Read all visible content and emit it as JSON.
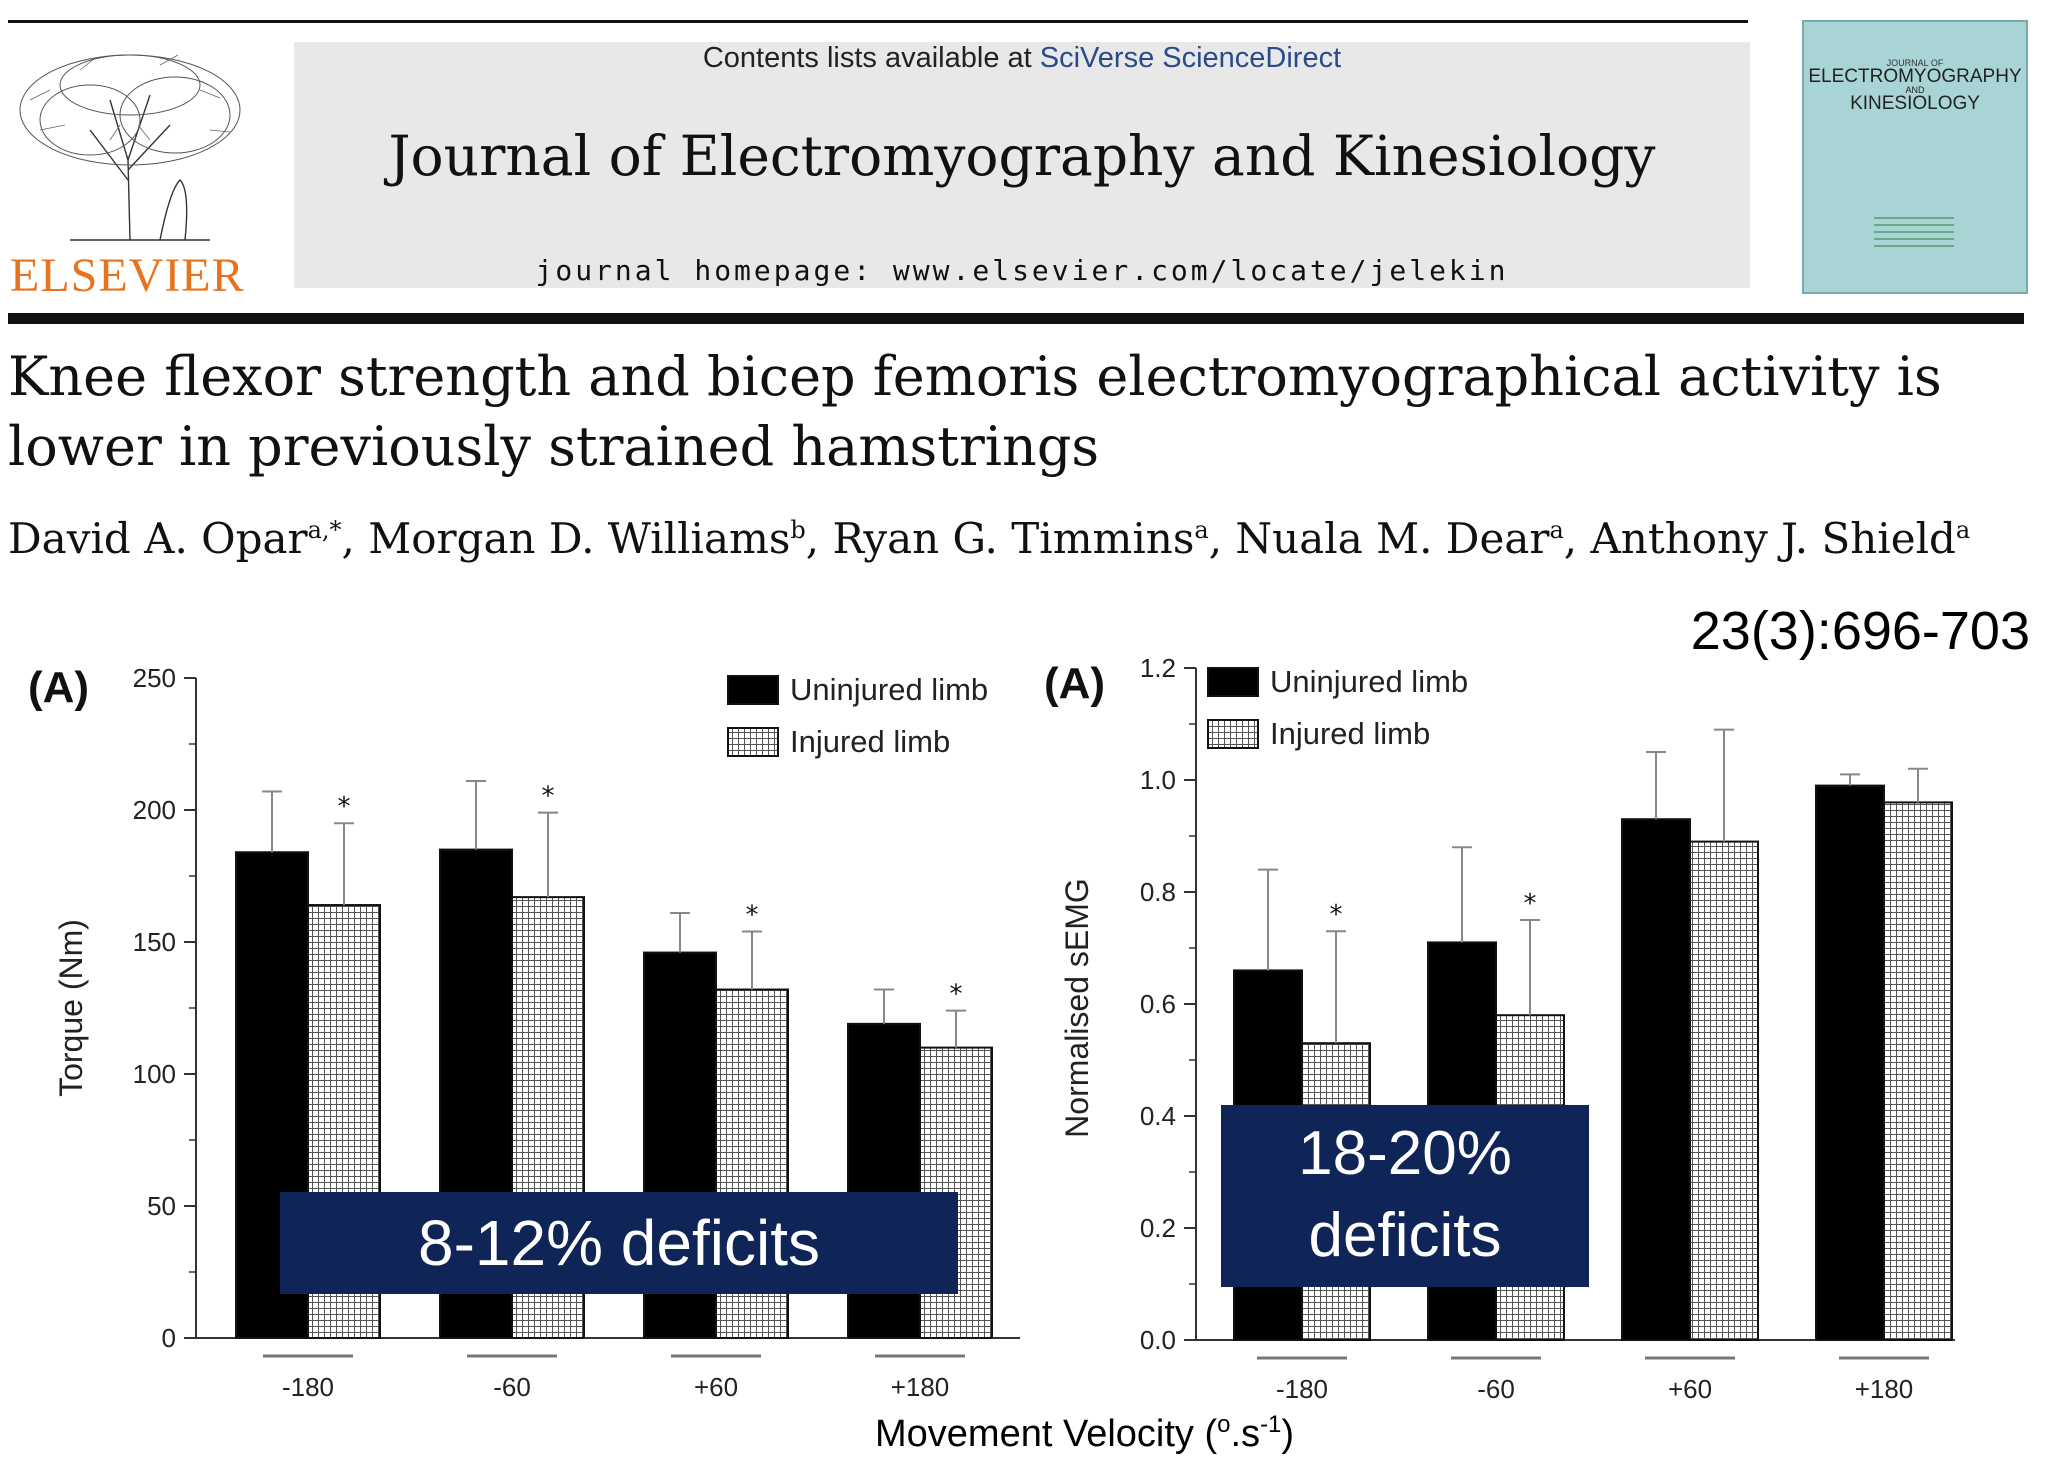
{
  "header": {
    "contents_prefix": "Contents lists available at ",
    "contents_link": "SciVerse ScienceDirect",
    "journal_title": "Journal of Electromyography and Kinesiology",
    "journal_homepage": "journal homepage: www.elsevier.com/locate/jelekin",
    "publisher": "ELSEVIER",
    "cover_small": "JOURNAL OF",
    "cover_title_1": "ELECTROMYOGRAPHY",
    "cover_title_and": "AND",
    "cover_title_2": "KINESIOLOGY"
  },
  "article": {
    "title": "Knee flexor strength and bicep femoris electromyographical activity is lower in previously strained hamstrings",
    "authors": [
      {
        "name": "David A. Opar",
        "affil": "a,*"
      },
      {
        "name": "Morgan D. Williams",
        "affil": "b"
      },
      {
        "name": "Ryan G. Timmins",
        "affil": "a"
      },
      {
        "name": "Nuala M. Dear",
        "affil": "a"
      },
      {
        "name": "Anthony J. Shield",
        "affil": "a"
      }
    ],
    "citation": "23(3):696-703"
  },
  "x_axis_title": "Movement Velocity (°.s-1)",
  "x_axis_title_main": "Movement Velocity (",
  "x_axis_title_degree": "o",
  "x_axis_title_unit": ".s",
  "x_axis_title_exp": "-1",
  "x_axis_title_close": ")",
  "callouts": {
    "left": "8-12% deficits",
    "right_line1": "18-20%",
    "right_line2": "deficits"
  },
  "chart_data": [
    {
      "type": "bar",
      "panel_label": "(A)",
      "categories": [
        "-180",
        "-60",
        "+60",
        "+180"
      ],
      "ylabel": "Torque (Nm)",
      "ylim": [
        0,
        250
      ],
      "yticks": [
        "0",
        "50",
        "100",
        "150",
        "200",
        "250"
      ],
      "legend_position": "top-right",
      "series": [
        {
          "name": "Uninjured limb",
          "values": [
            184,
            185,
            146,
            119
          ],
          "errors": [
            23,
            26,
            15,
            13
          ],
          "color": "#000000"
        },
        {
          "name": "Injured limb",
          "values": [
            164,
            167,
            132,
            110
          ],
          "errors": [
            31,
            32,
            22,
            14
          ],
          "pattern": "grid"
        }
      ],
      "significance": [
        "*",
        "*",
        "*",
        "*"
      ]
    },
    {
      "type": "bar",
      "panel_label": "(A)",
      "categories": [
        "-180",
        "-60",
        "+60",
        "+180"
      ],
      "ylabel": "Normalised sEMG",
      "ylim": [
        0,
        1.2
      ],
      "yticks": [
        "0.0",
        "0.2",
        "0.4",
        "0.6",
        "0.8",
        "1.0",
        "1.2"
      ],
      "legend_position": "top-left",
      "series": [
        {
          "name": "Uninjured limb",
          "values": [
            0.66,
            0.71,
            0.93,
            0.99
          ],
          "errors": [
            0.18,
            0.17,
            0.12,
            0.02
          ],
          "color": "#000000"
        },
        {
          "name": "Injured limb",
          "values": [
            0.53,
            0.58,
            0.89,
            0.96
          ],
          "errors": [
            0.2,
            0.17,
            0.2,
            0.06
          ],
          "pattern": "grid"
        }
      ],
      "significance": [
        "*",
        "*",
        "",
        ""
      ]
    }
  ]
}
